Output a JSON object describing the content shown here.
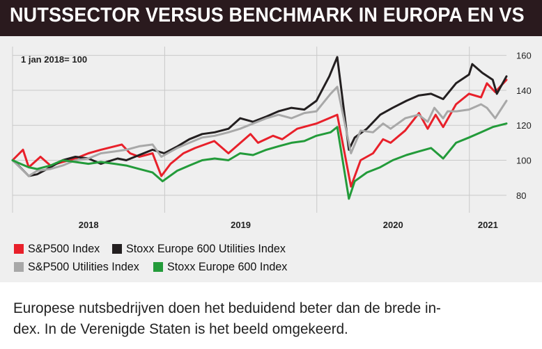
{
  "header": {
    "title": "NUTSSECTOR VERSUS BENCHMARK IN EUROPA EN VS"
  },
  "caption": {
    "line1": "Europese nutsbedrijven doen het beduidend beter dan de brede in-",
    "line2": "dex. In de Verenigde Staten is het beeld omgekeerd."
  },
  "colors": {
    "banner": "#2a1a1e",
    "panel": "#efefef",
    "red": "#e8202a",
    "black": "#231f20",
    "grey": "#a8a8a8",
    "green": "#239b3a"
  },
  "chart_data": {
    "type": "line",
    "title": "NUTSSECTOR VERSUS BENCHMARK IN EUROPA EN VS",
    "subtitle": "1 jan 2018= 100",
    "x_type": "date",
    "xlim": [
      "2018-01-01",
      "2021-03-31"
    ],
    "x_tick_labels": [
      "2018",
      "2019",
      "2020",
      "2021"
    ],
    "ylim": [
      70,
      165
    ],
    "y_ticks": [
      80,
      100,
      120,
      140,
      160
    ],
    "y_axis_position": "right",
    "grid": true,
    "legend_position": "bottom",
    "series": [
      {
        "name": "S&P500 Index",
        "color": "#e8202a",
        "points": [
          [
            "2018-01-01",
            100
          ],
          [
            "2018-01-26",
            106
          ],
          [
            "2018-02-09",
            96
          ],
          [
            "2018-03-09",
            102
          ],
          [
            "2018-04-02",
            97
          ],
          [
            "2018-05-01",
            99
          ],
          [
            "2018-06-01",
            101
          ],
          [
            "2018-07-02",
            104
          ],
          [
            "2018-08-01",
            106
          ],
          [
            "2018-09-20",
            109
          ],
          [
            "2018-10-10",
            104
          ],
          [
            "2018-11-01",
            102
          ],
          [
            "2018-12-03",
            104
          ],
          [
            "2018-12-24",
            91
          ],
          [
            "2019-01-15",
            98
          ],
          [
            "2019-02-15",
            104
          ],
          [
            "2019-03-15",
            107
          ],
          [
            "2019-04-30",
            111
          ],
          [
            "2019-06-03",
            104
          ],
          [
            "2019-07-26",
            115
          ],
          [
            "2019-08-13",
            110
          ],
          [
            "2019-09-18",
            114
          ],
          [
            "2019-10-10",
            112
          ],
          [
            "2019-11-15",
            118
          ],
          [
            "2019-12-31",
            121
          ],
          [
            "2020-02-19",
            126
          ],
          [
            "2020-03-23",
            85
          ],
          [
            "2020-04-15",
            100
          ],
          [
            "2020-05-15",
            104
          ],
          [
            "2020-06-08",
            112
          ],
          [
            "2020-06-26",
            110
          ],
          [
            "2020-07-31",
            117
          ],
          [
            "2020-09-02",
            127
          ],
          [
            "2020-09-23",
            118
          ],
          [
            "2020-10-12",
            126
          ],
          [
            "2020-10-30",
            119
          ],
          [
            "2020-11-30",
            132
          ],
          [
            "2020-12-31",
            138
          ],
          [
            "2021-01-29",
            136
          ],
          [
            "2021-02-12",
            144
          ],
          [
            "2021-03-04",
            139
          ],
          [
            "2021-03-31",
            146
          ]
        ]
      },
      {
        "name": "Stoxx Europe 600 Utilities Index",
        "color": "#231f20",
        "points": [
          [
            "2018-01-01",
            100
          ],
          [
            "2018-01-15",
            97
          ],
          [
            "2018-02-09",
            91
          ],
          [
            "2018-03-01",
            92
          ],
          [
            "2018-04-02",
            96
          ],
          [
            "2018-05-01",
            100
          ],
          [
            "2018-06-01",
            102
          ],
          [
            "2018-07-02",
            101
          ],
          [
            "2018-08-01",
            98
          ],
          [
            "2018-09-10",
            101
          ],
          [
            "2018-10-01",
            100
          ],
          [
            "2018-11-01",
            103
          ],
          [
            "2018-12-03",
            106
          ],
          [
            "2018-12-31",
            104
          ],
          [
            "2019-02-01",
            108
          ],
          [
            "2019-03-01",
            112
          ],
          [
            "2019-04-01",
            115
          ],
          [
            "2019-05-01",
            116
          ],
          [
            "2019-06-03",
            118
          ],
          [
            "2019-07-01",
            124
          ],
          [
            "2019-08-01",
            122
          ],
          [
            "2019-09-02",
            125
          ],
          [
            "2019-10-01",
            128
          ],
          [
            "2019-11-01",
            130
          ],
          [
            "2019-12-02",
            129
          ],
          [
            "2019-12-31",
            134
          ],
          [
            "2020-01-31",
            148
          ],
          [
            "2020-02-19",
            159
          ],
          [
            "2020-03-18",
            106
          ],
          [
            "2020-04-01",
            113
          ],
          [
            "2020-04-30",
            118
          ],
          [
            "2020-06-01",
            126
          ],
          [
            "2020-07-01",
            130
          ],
          [
            "2020-08-03",
            134
          ],
          [
            "2020-09-01",
            137
          ],
          [
            "2020-10-01",
            138
          ],
          [
            "2020-10-30",
            135
          ],
          [
            "2020-11-30",
            144
          ],
          [
            "2020-12-31",
            149
          ],
          [
            "2021-01-08",
            155
          ],
          [
            "2021-02-01",
            150
          ],
          [
            "2021-02-26",
            146
          ],
          [
            "2021-03-08",
            138
          ],
          [
            "2021-03-31",
            148
          ]
        ]
      },
      {
        "name": "S&P500 Utilities Index",
        "color": "#a8a8a8",
        "points": [
          [
            "2018-01-01",
            100
          ],
          [
            "2018-02-09",
            91
          ],
          [
            "2018-03-01",
            94
          ],
          [
            "2018-04-02",
            95
          ],
          [
            "2018-05-01",
            97
          ],
          [
            "2018-06-01",
            100
          ],
          [
            "2018-07-02",
            101
          ],
          [
            "2018-08-01",
            104
          ],
          [
            "2018-09-03",
            105
          ],
          [
            "2018-10-01",
            106
          ],
          [
            "2018-11-01",
            108
          ],
          [
            "2018-12-03",
            109
          ],
          [
            "2018-12-24",
            102
          ],
          [
            "2019-01-31",
            107
          ],
          [
            "2019-03-01",
            110
          ],
          [
            "2019-04-01",
            113
          ],
          [
            "2019-05-01",
            114
          ],
          [
            "2019-06-03",
            116
          ],
          [
            "2019-07-01",
            118
          ],
          [
            "2019-08-01",
            121
          ],
          [
            "2019-09-02",
            124
          ],
          [
            "2019-10-01",
            126
          ],
          [
            "2019-11-01",
            124
          ],
          [
            "2019-12-02",
            127
          ],
          [
            "2019-12-31",
            128
          ],
          [
            "2020-02-03",
            138
          ],
          [
            "2020-02-19",
            142
          ],
          [
            "2020-03-23",
            104
          ],
          [
            "2020-04-15",
            117
          ],
          [
            "2020-05-15",
            116
          ],
          [
            "2020-06-08",
            121
          ],
          [
            "2020-06-26",
            118
          ],
          [
            "2020-07-31",
            124
          ],
          [
            "2020-09-01",
            126
          ],
          [
            "2020-09-23",
            122
          ],
          [
            "2020-10-09",
            130
          ],
          [
            "2020-10-30",
            124
          ],
          [
            "2020-11-10",
            128
          ],
          [
            "2020-12-01",
            128
          ],
          [
            "2020-12-31",
            129
          ],
          [
            "2021-01-29",
            132
          ],
          [
            "2021-02-12",
            130
          ],
          [
            "2021-03-04",
            124
          ],
          [
            "2021-03-31",
            134
          ]
        ]
      },
      {
        "name": "Stoxx Europe 600 Index",
        "color": "#239b3a",
        "points": [
          [
            "2018-01-01",
            100
          ],
          [
            "2018-01-20",
            98
          ],
          [
            "2018-02-09",
            96
          ],
          [
            "2018-03-01",
            95
          ],
          [
            "2018-04-02",
            97
          ],
          [
            "2018-05-01",
            100
          ],
          [
            "2018-06-01",
            99
          ],
          [
            "2018-07-02",
            98
          ],
          [
            "2018-08-01",
            99
          ],
          [
            "2018-09-03",
            98
          ],
          [
            "2018-10-01",
            97
          ],
          [
            "2018-11-01",
            95
          ],
          [
            "2018-12-03",
            93
          ],
          [
            "2018-12-27",
            88
          ],
          [
            "2019-01-31",
            94
          ],
          [
            "2019-03-01",
            97
          ],
          [
            "2019-04-01",
            100
          ],
          [
            "2019-05-01",
            101
          ],
          [
            "2019-06-03",
            100
          ],
          [
            "2019-07-01",
            104
          ],
          [
            "2019-08-01",
            103
          ],
          [
            "2019-09-02",
            106
          ],
          [
            "2019-10-01",
            108
          ],
          [
            "2019-11-01",
            110
          ],
          [
            "2019-12-02",
            111
          ],
          [
            "2019-12-31",
            114
          ],
          [
            "2020-02-03",
            116
          ],
          [
            "2020-02-19",
            119
          ],
          [
            "2020-03-18",
            78
          ],
          [
            "2020-04-01",
            88
          ],
          [
            "2020-04-30",
            93
          ],
          [
            "2020-06-01",
            96
          ],
          [
            "2020-07-01",
            100
          ],
          [
            "2020-08-03",
            103
          ],
          [
            "2020-09-01",
            105
          ],
          [
            "2020-10-01",
            107
          ],
          [
            "2020-10-30",
            101
          ],
          [
            "2020-11-30",
            110
          ],
          [
            "2020-12-31",
            113
          ],
          [
            "2021-01-29",
            116
          ],
          [
            "2021-02-26",
            119
          ],
          [
            "2021-03-31",
            121
          ]
        ]
      }
    ]
  }
}
